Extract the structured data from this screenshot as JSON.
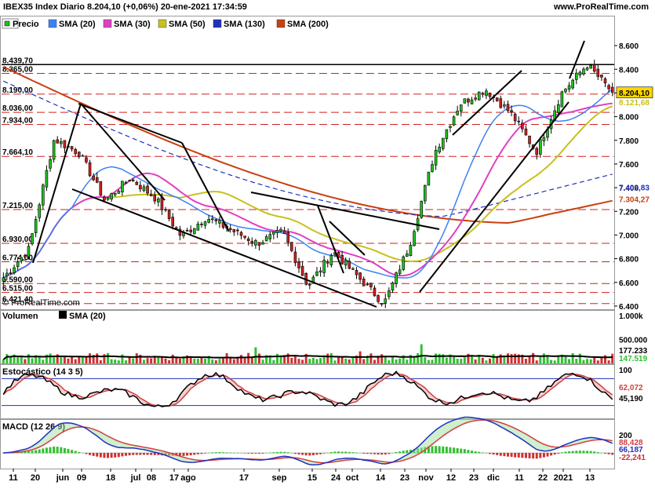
{
  "header": {
    "title": "IBEX35 Index Diario 8.204,10 (+0,06%) 20-ene-2021 17:34:59",
    "site": "www.ProRealTime.com",
    "copyright": "© ProRealTime.com"
  },
  "colors": {
    "sma20": "#3b82f6",
    "sma30": "#e040c0",
    "sma50": "#c8c020",
    "sma130": "#2030c0",
    "sma200": "#c84010",
    "up": "#20c020",
    "down": "#d02020",
    "volume_up": "#30c030",
    "volume_down": "#d03030",
    "stoch_k": "#000000",
    "stoch_d": "#d04040",
    "macd": "#2030c0",
    "signal": "#d04040"
  },
  "legend": {
    "price_label": "Precio",
    "items": [
      {
        "label": "SMA (20)",
        "color": "#3b82f6"
      },
      {
        "label": "SMA (30)",
        "color": "#e040c0"
      },
      {
        "label": "SMA (50)",
        "color": "#c8c020"
      },
      {
        "label": "SMA (130)",
        "color": "#2030c0"
      },
      {
        "label": "SMA (200)",
        "color": "#c84010"
      }
    ]
  },
  "chart_data": [
    {
      "type": "candlestick",
      "name": "price",
      "right_axis_ticks": [
        "8.600",
        "8.400",
        "8.200",
        "8.000",
        "7.800",
        "7.600",
        "7.400",
        "7.200",
        "7.000",
        "6.800",
        "6.600",
        "6.400"
      ],
      "left_levels": [
        "8.439,70",
        "8.365,00",
        "8.190,00",
        "8.036,00",
        "7.934,00",
        "7.664,10",
        "7.215,00",
        "6.930,00",
        "6.774,00",
        "6.590,00",
        "6.515,00",
        "6.421,40"
      ],
      "level_values": [
        8439.7,
        8365,
        8190,
        8036,
        7934,
        7664.1,
        7215,
        6930,
        6774,
        6590,
        6515,
        6421.4
      ],
      "right_labels": [
        {
          "text": "8.215,78",
          "value": 8215.78,
          "color": "#3b82f6"
        },
        {
          "text": "8.204,10",
          "value": 8204.1,
          "color": "#000000",
          "highlight": true
        },
        {
          "text": "8.121,68",
          "value": 8121.68,
          "color": "#c8c020"
        },
        {
          "text": "7.402,83",
          "value": 7402.83,
          "color": "#2030c0"
        },
        {
          "text": "7.304,27",
          "value": 7304.27,
          "color": "#c84010"
        }
      ],
      "x_labels": [
        "11",
        "20",
        "jun",
        "09",
        "18",
        "jul",
        "08",
        "17",
        "ago",
        "17",
        "sep",
        "15",
        "24",
        "oct",
        "14",
        "23",
        "nov",
        "12",
        "23",
        "dic",
        "11",
        "22",
        "2021",
        "13"
      ],
      "ylim": [
        6300,
        8700
      ],
      "key_closes": [
        6640,
        6880,
        7810,
        7690,
        7290,
        7480,
        7310,
        6990,
        7150,
        7040,
        6930,
        7030,
        6570,
        6860,
        6640,
        6420,
        6910,
        7700,
        8110,
        8230,
        8030,
        7700,
        8200,
        8440,
        8204
      ]
    },
    {
      "type": "bar",
      "name": "volume",
      "title": "Volumen",
      "overlay": "SMA (20)",
      "right_axis_ticks": [
        "1.000k",
        "500.000"
      ],
      "right_labels": [
        {
          "text": "177.233",
          "color": "#000000"
        },
        {
          "text": "147.519",
          "color": "#30c030"
        }
      ]
    },
    {
      "type": "line",
      "name": "stochastic",
      "title": "Estocástico (14 3 5)",
      "right_axis_ticks": [
        "100"
      ],
      "right_labels": [
        {
          "text": "62,072",
          "color": "#d04040"
        },
        {
          "text": "45,190",
          "color": "#000000"
        }
      ],
      "ylim": [
        0,
        100
      ],
      "bands": [
        80,
        20
      ]
    },
    {
      "type": "line",
      "name": "macd",
      "title": "MACD (12 26 9)",
      "right_axis_ticks": [
        "200"
      ],
      "right_labels": [
        {
          "text": "88,428",
          "color": "#d04040"
        },
        {
          "text": "66,187",
          "color": "#2030c0"
        },
        {
          "text": "-22,241",
          "color": "#d03030"
        }
      ]
    }
  ]
}
